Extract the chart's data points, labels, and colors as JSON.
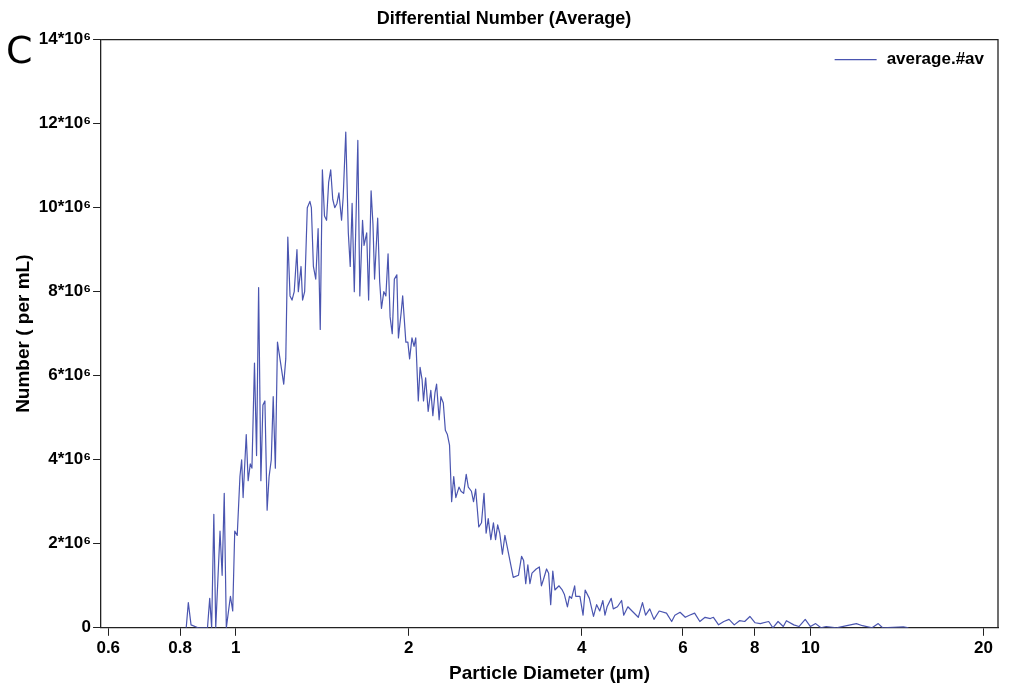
{
  "chart_data": {
    "type": "line",
    "title": "Differential Number (Average)",
    "xlabel": "Particle Diameter (µm)",
    "ylabel": "Number ( per mL)",
    "annotations": [
      "C"
    ],
    "log": "x",
    "grid": false,
    "legend": "top right",
    "marker": "none",
    "line_style": "solid",
    "xlim": [
      0.583,
      21.2
    ],
    "xticks": [
      0.6,
      0.8,
      1,
      2,
      4,
      6,
      8,
      10,
      20
    ],
    "ylim": [
      0,
      14000000
    ],
    "yticks": [
      0,
      {
        "value": 2000000,
        "label": "2*10⁶"
      },
      {
        "value": 4000000,
        "label": "4*10⁶"
      },
      {
        "value": 6000000,
        "label": "6*10⁶"
      },
      {
        "value": 8000000,
        "label": "8*10⁶"
      },
      {
        "value": 10000000,
        "label": "10*10⁶"
      },
      {
        "value": 12000000,
        "label": "12*10⁶"
      },
      {
        "value": 14000000,
        "label": "14*10⁶"
      }
    ],
    "x": [
      0.82,
      0.827,
      0.836,
      0.86,
      0.893,
      0.901,
      0.908,
      0.916,
      0.923,
      0.939,
      0.947,
      0.955,
      0.963,
      0.979,
      0.988,
      0.996,
      1.006,
      1.017,
      1.024,
      1.03,
      1.043,
      1.051,
      1.06,
      1.067,
      1.078,
      1.087,
      1.096,
      1.106,
      1.115,
      1.124,
      1.134,
      1.143,
      1.153,
      1.162,
      1.172,
      1.182,
      1.197,
      1.212,
      1.222,
      1.232,
      1.243,
      1.253,
      1.264,
      1.278,
      1.285,
      1.299,
      1.307,
      1.318,
      1.332,
      1.346,
      1.354,
      1.365,
      1.378,
      1.391,
      1.403,
      1.415,
      1.427,
      1.439,
      1.451,
      1.463,
      1.475,
      1.487,
      1.5,
      1.512,
      1.528,
      1.538,
      1.554,
      1.57,
      1.582,
      1.594,
      1.608,
      1.631,
      1.644,
      1.662,
      1.672,
      1.69,
      1.703,
      1.72,
      1.733,
      1.744,
      1.766,
      1.78,
      1.793,
      1.81,
      1.825,
      1.841,
      1.856,
      1.872,
      1.888,
      1.907,
      1.919,
      1.94,
      1.952,
      1.977,
      1.993,
      2.007,
      2.026,
      2.043,
      2.057,
      2.078,
      2.093,
      2.11,
      2.122,
      2.14,
      2.162,
      2.185,
      2.203,
      2.222,
      2.236,
      2.259,
      2.275,
      2.297,
      2.316,
      2.335,
      2.355,
      2.375,
      2.395,
      2.415,
      2.446,
      2.466,
      2.492,
      2.518,
      2.539,
      2.571,
      2.593,
      2.615,
      2.648,
      2.677,
      2.704,
      2.727,
      2.75,
      2.779,
      2.808,
      2.832,
      2.856,
      2.88,
      2.911,
      2.94,
      2.965,
      3.04,
      3.104,
      3.143,
      3.169,
      3.196,
      3.223,
      3.25,
      3.277,
      3.333,
      3.375,
      3.403,
      3.431,
      3.474,
      3.503,
      3.532,
      3.562,
      3.592,
      3.652,
      3.699,
      3.73,
      3.777,
      3.808,
      3.84,
      3.888,
      3.905,
      3.971,
      4.021,
      4.055,
      4.124,
      4.193,
      4.246,
      4.299,
      4.353,
      4.39,
      4.427,
      4.501,
      4.539,
      4.615,
      4.693,
      4.732,
      4.812,
      4.893,
      5.017,
      5.102,
      5.166,
      5.253,
      5.342,
      5.455,
      5.617,
      5.735,
      5.809,
      5.931,
      6.056,
      6.158,
      6.287,
      6.42,
      6.556,
      6.695,
      6.779,
      6.921,
      7.068,
      7.216,
      7.369,
      7.525,
      7.684,
      7.846,
      8.012,
      8.182,
      8.46,
      8.603,
      8.783,
      8.969,
      9.082,
      9.354,
      9.55,
      9.793,
      10.0,
      10.21,
      10.43,
      10.65,
      11.1,
      11.57,
      12.02,
      12.32,
      12.8,
      13.12,
      13.35,
      14.51,
      14.81
    ],
    "series": [
      {
        "name": "average.#av",
        "color": "#4a55b0",
        "values": [
          0,
          600000,
          70000,
          0,
          0,
          700000,
          0,
          2700000,
          0,
          2300000,
          1250000,
          3200000,
          0,
          750000,
          400000,
          2300000,
          2200000,
          3600000,
          4000000,
          3100000,
          4600000,
          3500000,
          3900000,
          3800000,
          6300000,
          4100000,
          8100000,
          3500000,
          5300000,
          5400000,
          2800000,
          3600000,
          4000000,
          5500000,
          3800000,
          6800000,
          6300000,
          5800000,
          6400000,
          9300000,
          7900000,
          7800000,
          8000000,
          9000000,
          8000000,
          8600000,
          7800000,
          8000000,
          10000000,
          10150000,
          10000000,
          8600000,
          8300000,
          9500000,
          7100000,
          10900000,
          9800000,
          9700000,
          10600000,
          10900000,
          10200000,
          10000000,
          10100000,
          10350000,
          9700000,
          10250000,
          11800000,
          9400000,
          8600000,
          10100000,
          8000000,
          11600000,
          7900000,
          9700000,
          9100000,
          9400000,
          7800000,
          10400000,
          9600000,
          8300000,
          9750000,
          8250000,
          7600000,
          8000000,
          7900000,
          8900000,
          7400000,
          7000000,
          8300000,
          8400000,
          6900000,
          7500000,
          7900000,
          6800000,
          6800000,
          6400000,
          6900000,
          6700000,
          6900000,
          5400000,
          6200000,
          5900000,
          5400000,
          5950000,
          5150000,
          5650000,
          5050000,
          5600000,
          5800000,
          4950000,
          5500000,
          5350000,
          4700000,
          4600000,
          4350000,
          3000000,
          3600000,
          3100000,
          3350000,
          3250000,
          3200000,
          3650000,
          3350000,
          3250000,
          3000000,
          3300000,
          2400000,
          2500000,
          3200000,
          2250000,
          2600000,
          2100000,
          2500000,
          2100000,
          2450000,
          2250000,
          1750000,
          2200000,
          1950000,
          1200000,
          1250000,
          1700000,
          1600000,
          1050000,
          1500000,
          1050000,
          1300000,
          1400000,
          1450000,
          1000000,
          1150000,
          1400000,
          1300000,
          550000,
          1350000,
          900000,
          1000000,
          900000,
          800000,
          500000,
          750000,
          700000,
          1000000,
          750000,
          750000,
          300000,
          900000,
          700000,
          270000,
          550000,
          400000,
          650000,
          300000,
          500000,
          700000,
          450000,
          500000,
          650000,
          300000,
          500000,
          400000,
          250000,
          600000,
          300000,
          450000,
          200000,
          400000,
          350000,
          150000,
          300000,
          370000,
          250000,
          300000,
          350000,
          150000,
          250000,
          220000,
          250000,
          70000,
          150000,
          200000,
          70000,
          170000,
          150000,
          270000,
          120000,
          100000,
          150000,
          0,
          150000,
          30000,
          170000,
          70000,
          30000,
          200000,
          30000,
          100000,
          0,
          30000,
          0,
          50000,
          100000,
          50000,
          0,
          100000,
          0,
          20000,
          0
        ]
      }
    ]
  }
}
